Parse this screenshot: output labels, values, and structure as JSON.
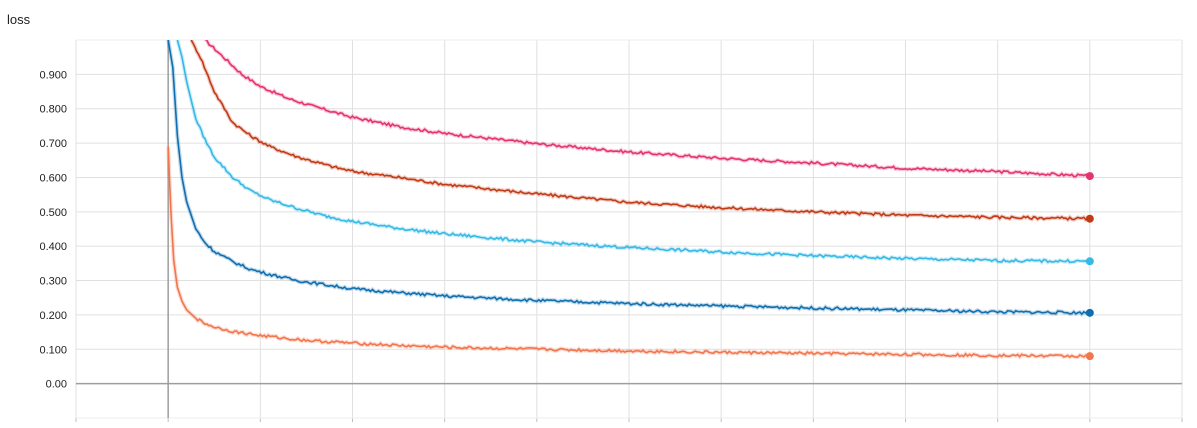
{
  "chart_data": {
    "type": "line",
    "title": "loss",
    "xlabel": "",
    "ylabel": "",
    "xlim": [
      -1,
      11
    ],
    "ylim": [
      -0.1,
      1.0
    ],
    "x_gridlines": [
      -1,
      0,
      1,
      2,
      3,
      4,
      5,
      6,
      7,
      8,
      9,
      10,
      11
    ],
    "y_ticks": [
      {
        "value": 0.0,
        "label": "0.00"
      },
      {
        "value": 0.1,
        "label": "0.100"
      },
      {
        "value": 0.2,
        "label": "0.200"
      },
      {
        "value": 0.3,
        "label": "0.300"
      },
      {
        "value": 0.4,
        "label": "0.400"
      },
      {
        "value": 0.5,
        "label": "0.500"
      },
      {
        "value": 0.6,
        "label": "0.600"
      },
      {
        "value": 0.7,
        "label": "0.700"
      },
      {
        "value": 0.8,
        "label": "0.800"
      },
      {
        "value": 0.9,
        "label": "0.900"
      }
    ],
    "grid": true,
    "legend": "none",
    "series": [
      {
        "color": "#e5336e",
        "x": [
          0.4,
          0.6,
          0.8,
          1.0,
          1.3,
          1.6,
          2.0,
          2.5,
          3.0,
          4.0,
          5.0,
          6.0,
          7.0,
          8.0,
          9.0,
          10.0
        ],
        "y": [
          1.0,
          0.95,
          0.9,
          0.865,
          0.83,
          0.805,
          0.775,
          0.748,
          0.728,
          0.698,
          0.674,
          0.656,
          0.642,
          0.627,
          0.617,
          0.604
        ]
      },
      {
        "color": "#c23a16",
        "x": [
          0.25,
          0.35,
          0.5,
          0.7,
          0.9,
          1.1,
          1.4,
          1.8,
          2.0,
          2.5,
          3.0,
          4.0,
          5.0,
          6.0,
          7.0,
          8.0,
          9.0,
          10.0
        ],
        "y": [
          1.0,
          0.95,
          0.85,
          0.76,
          0.72,
          0.69,
          0.66,
          0.63,
          0.618,
          0.6,
          0.58,
          0.552,
          0.528,
          0.512,
          0.5,
          0.49,
          0.484,
          0.48
        ]
      },
      {
        "color": "#36b9e6",
        "x": [
          0.1,
          0.15,
          0.2,
          0.3,
          0.4,
          0.5,
          0.7,
          0.9,
          1.1,
          1.4,
          1.7,
          2.0,
          2.5,
          3.0,
          4.0,
          5.0,
          6.0,
          7.0,
          8.0,
          9.0,
          10.0
        ],
        "y": [
          1.0,
          0.95,
          0.88,
          0.77,
          0.71,
          0.66,
          0.6,
          0.56,
          0.535,
          0.51,
          0.488,
          0.472,
          0.452,
          0.436,
          0.412,
          0.396,
          0.383,
          0.372,
          0.364,
          0.358,
          0.356
        ]
      },
      {
        "color": "#0f6fb0",
        "x": [
          0.0,
          0.05,
          0.1,
          0.15,
          0.2,
          0.3,
          0.4,
          0.5,
          0.7,
          0.9,
          1.1,
          1.4,
          1.7,
          2.0,
          2.5,
          3.0,
          4.0,
          5.0,
          6.0,
          7.0,
          8.0,
          9.0,
          10.0
        ],
        "y": [
          1.0,
          0.92,
          0.72,
          0.6,
          0.53,
          0.45,
          0.41,
          0.385,
          0.355,
          0.332,
          0.318,
          0.3,
          0.288,
          0.276,
          0.265,
          0.255,
          0.242,
          0.233,
          0.226,
          0.22,
          0.214,
          0.209,
          0.206
        ]
      },
      {
        "color": "#f2754c",
        "x": [
          0.0,
          0.03,
          0.06,
          0.1,
          0.15,
          0.2,
          0.3,
          0.4,
          0.5,
          0.7,
          1.0,
          1.3,
          1.6,
          2.0,
          2.5,
          3.0,
          4.0,
          5.0,
          6.0,
          7.0,
          8.0,
          9.0,
          10.0
        ],
        "y": [
          0.69,
          0.5,
          0.36,
          0.28,
          0.24,
          0.215,
          0.19,
          0.175,
          0.165,
          0.152,
          0.14,
          0.131,
          0.124,
          0.118,
          0.111,
          0.106,
          0.1,
          0.095,
          0.091,
          0.088,
          0.085,
          0.082,
          0.08
        ]
      }
    ]
  }
}
